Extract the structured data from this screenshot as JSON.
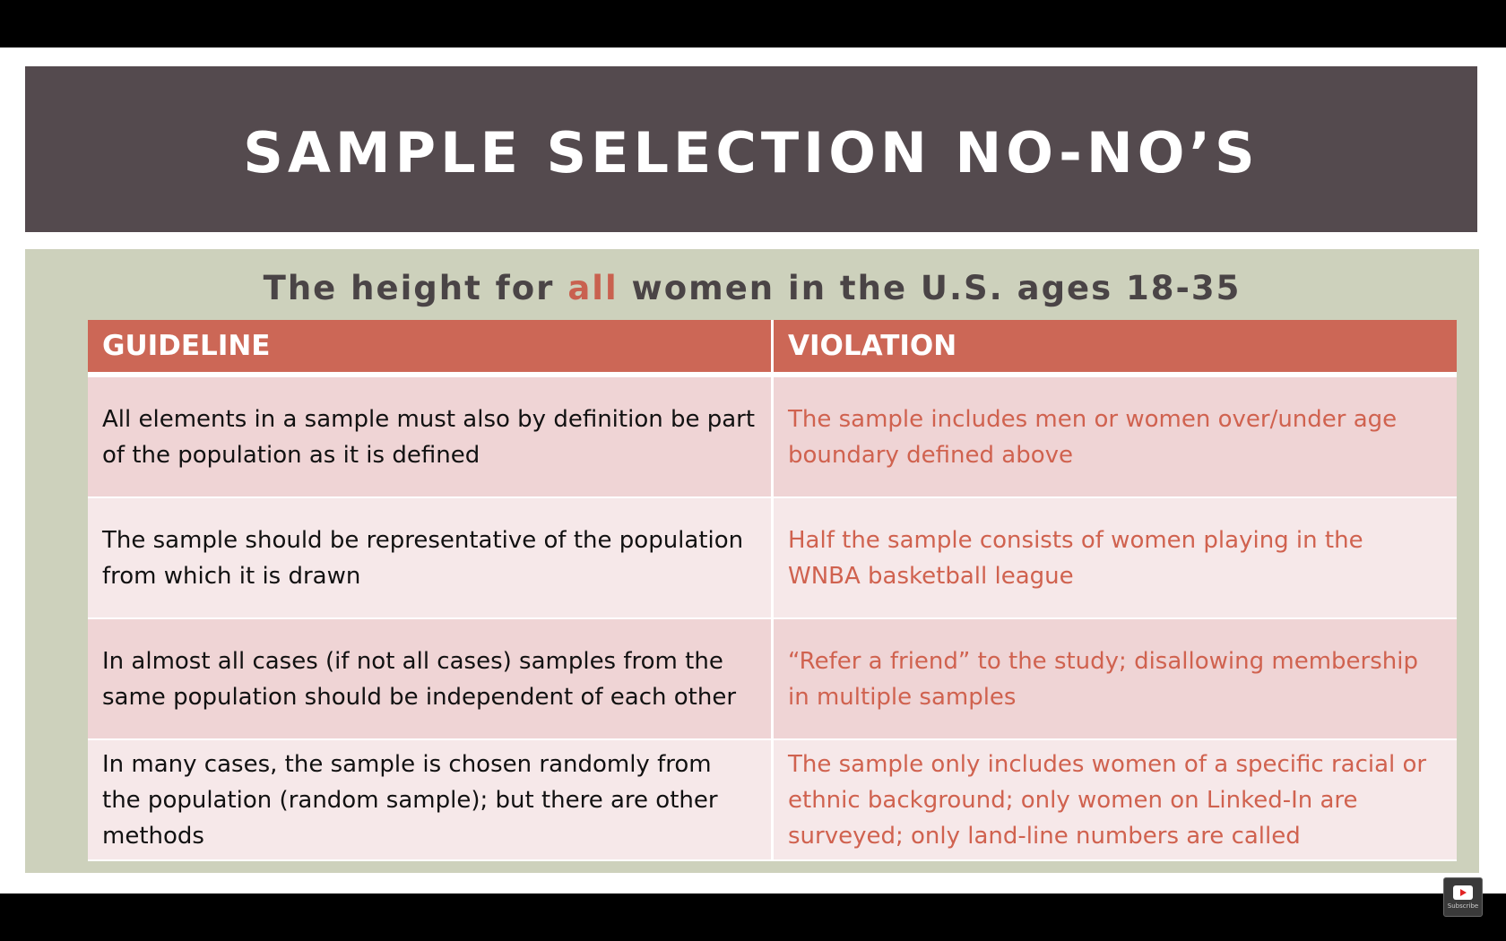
{
  "slide": {
    "title": "SAMPLE SELECTION NO-NO’S",
    "subtitle": {
      "prefix": "The height for ",
      "emphasis": "all",
      "suffix": " women in the U.S. ages 18-35"
    },
    "colors": {
      "title_bar": "#544a4e",
      "panel": "#cdd1bc",
      "header": "#cc6756",
      "accent": "#c9614f"
    },
    "table": {
      "headers": {
        "guideline": "GUIDELINE",
        "violation": "VIOLATION"
      },
      "rows": [
        {
          "guideline": "All elements in a sample must also by definition be part of the population as it is defined",
          "violation": "The sample includes men or women over/under age boundary defined above"
        },
        {
          "guideline": "The sample should be representative of the population from which it is drawn",
          "violation": "Half the sample consists of women playing in the WNBA basketball league"
        },
        {
          "guideline": "In almost all cases (if not all cases) samples from the same population should be independent of each other",
          "violation": "“Refer a friend” to the study; disallowing membership in multiple samples"
        },
        {
          "guideline": "In many cases, the sample is chosen randomly from the population (random sample); but there are other methods",
          "violation": "The sample only includes women of a specific racial or ethnic background; only women on Linked-In are surveyed; only land-line numbers are called"
        }
      ]
    }
  },
  "player": {
    "subscribe_label": "Subscribe",
    "subscribe_icon": "youtube-icon"
  }
}
